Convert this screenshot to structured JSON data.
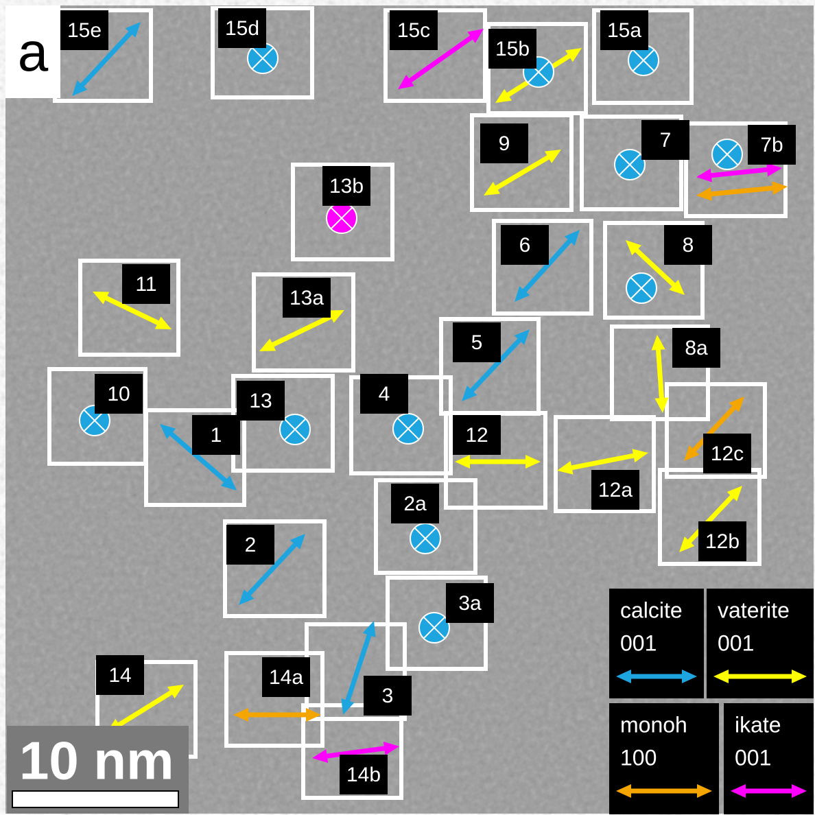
{
  "panel_label": "a",
  "scale_bar": "10 nm",
  "regions": [
    {
      "label": "15e"
    },
    {
      "label": "15d"
    },
    {
      "label": "15c"
    },
    {
      "label": "15b"
    },
    {
      "label": "15a"
    },
    {
      "label": "9"
    },
    {
      "label": "7"
    },
    {
      "label": "7b"
    },
    {
      "label": "13b"
    },
    {
      "label": "6"
    },
    {
      "label": "8"
    },
    {
      "label": "11"
    },
    {
      "label": "13a"
    },
    {
      "label": "5"
    },
    {
      "label": "8a"
    },
    {
      "label": "10"
    },
    {
      "label": "1"
    },
    {
      "label": "13"
    },
    {
      "label": "4"
    },
    {
      "label": "12"
    },
    {
      "label": "12a"
    },
    {
      "label": "12c"
    },
    {
      "label": "12b"
    },
    {
      "label": "2a"
    },
    {
      "label": "2"
    },
    {
      "label": "3a"
    },
    {
      "label": "14"
    },
    {
      "label": "14a"
    },
    {
      "label": "3"
    },
    {
      "label": "14b"
    }
  ],
  "legend": [
    {
      "phase": "calcite",
      "direction": "001"
    },
    {
      "phase": "vaterite",
      "direction": "001"
    },
    {
      "phase": "monoh",
      "direction": "100"
    },
    {
      "phase": "ikate",
      "direction": "001"
    }
  ]
}
